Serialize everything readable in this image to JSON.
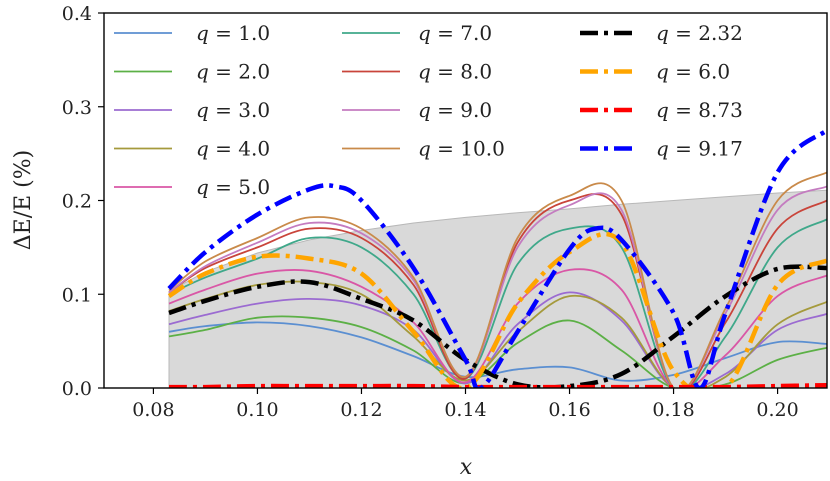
{
  "chart_data": {
    "type": "line",
    "xlabel": "x",
    "ylabel": "ΔE/E (%)",
    "xlim": [
      0.0705,
      0.2095
    ],
    "ylim": [
      0.0,
      0.4
    ],
    "xticks": [
      0.08,
      0.1,
      0.12,
      0.14,
      0.16,
      0.18,
      0.2
    ],
    "xtick_labels": [
      "0.08",
      "0.10",
      "0.12",
      "0.14",
      "0.16",
      "0.18",
      "0.20"
    ],
    "yticks": [
      0.0,
      0.1,
      0.2,
      0.3,
      0.4
    ],
    "ytick_labels": [
      "0.0",
      "0.1",
      "0.2",
      "0.3",
      "0.4"
    ],
    "grid": false,
    "legend_placement": "top",
    "legend_columns": 3,
    "shaded_region": {
      "color": "#d9d9d9",
      "x": [
        0.083,
        0.09,
        0.1,
        0.11,
        0.12,
        0.13,
        0.14,
        0.15,
        0.16,
        0.17,
        0.18,
        0.19,
        0.2,
        0.2095
      ],
      "y_upper": [
        0.103,
        0.124,
        0.144,
        0.158,
        0.168,
        0.176,
        0.182,
        0.187,
        0.191,
        0.196,
        0.2,
        0.204,
        0.208,
        0.211
      ],
      "y_lower": [
        0,
        0,
        0,
        0,
        0,
        0,
        0,
        0,
        0,
        0,
        0,
        0,
        0,
        0
      ]
    },
    "series": [
      {
        "name": "q = 1.0",
        "color": "#5b8fd1",
        "style": "solid",
        "width": 1.8,
        "x": [
          0.083,
          0.09,
          0.1,
          0.11,
          0.12,
          0.13,
          0.14,
          0.15,
          0.16,
          0.17,
          0.18,
          0.19,
          0.2,
          0.2095
        ],
        "y": [
          0.06,
          0.066,
          0.07,
          0.066,
          0.054,
          0.034,
          0.012,
          0.02,
          0.022,
          0.008,
          0.014,
          0.032,
          0.049,
          0.047
        ]
      },
      {
        "name": "q = 2.0",
        "color": "#5cb046",
        "style": "solid",
        "width": 1.8,
        "x": [
          0.083,
          0.09,
          0.1,
          0.11,
          0.12,
          0.13,
          0.14,
          0.15,
          0.16,
          0.17,
          0.18,
          0.19,
          0.2,
          0.2095
        ],
        "y": [
          0.055,
          0.062,
          0.075,
          0.075,
          0.065,
          0.04,
          0.005,
          0.048,
          0.072,
          0.04,
          0.0,
          0.004,
          0.03,
          0.043
        ]
      },
      {
        "name": "q = 3.0",
        "color": "#9b6bd1",
        "style": "solid",
        "width": 1.8,
        "x": [
          0.083,
          0.09,
          0.1,
          0.11,
          0.12,
          0.13,
          0.14,
          0.15,
          0.16,
          0.17,
          0.18,
          0.19,
          0.2,
          0.2095
        ],
        "y": [
          0.068,
          0.078,
          0.09,
          0.095,
          0.088,
          0.062,
          0.005,
          0.068,
          0.102,
          0.072,
          0.0,
          0.015,
          0.062,
          0.079
        ]
      },
      {
        "name": "q = 4.0",
        "color": "#a59a3c",
        "style": "solid",
        "width": 1.8,
        "x": [
          0.083,
          0.09,
          0.1,
          0.11,
          0.12,
          0.13,
          0.14,
          0.15,
          0.16,
          0.17,
          0.18,
          0.19,
          0.2,
          0.2095
        ],
        "y": [
          0.082,
          0.095,
          0.11,
          0.113,
          0.1,
          0.055,
          0.008,
          0.06,
          0.098,
          0.075,
          0.0,
          0.012,
          0.068,
          0.092
        ]
      },
      {
        "name": "q = 5.0",
        "color": "#d957a6",
        "style": "solid",
        "width": 1.8,
        "x": [
          0.083,
          0.09,
          0.1,
          0.11,
          0.12,
          0.13,
          0.14,
          0.15,
          0.16,
          0.17,
          0.18,
          0.19,
          0.2,
          0.2095
        ],
        "y": [
          0.09,
          0.105,
          0.122,
          0.125,
          0.108,
          0.07,
          0.006,
          0.09,
          0.126,
          0.105,
          0.0,
          0.035,
          0.098,
          0.12
        ]
      },
      {
        "name": "q = 7.0",
        "color": "#3fa88a",
        "style": "solid",
        "width": 1.8,
        "x": [
          0.083,
          0.09,
          0.1,
          0.11,
          0.12,
          0.13,
          0.14,
          0.15,
          0.16,
          0.17,
          0.18,
          0.19,
          0.2,
          0.2095
        ],
        "y": [
          0.1,
          0.118,
          0.138,
          0.16,
          0.15,
          0.1,
          0.01,
          0.132,
          0.17,
          0.15,
          0.0,
          0.055,
          0.15,
          0.18
        ]
      },
      {
        "name": "q = 8.0",
        "color": "#c9443a",
        "style": "solid",
        "width": 1.8,
        "x": [
          0.083,
          0.09,
          0.1,
          0.11,
          0.12,
          0.13,
          0.14,
          0.15,
          0.16,
          0.17,
          0.18,
          0.19,
          0.2,
          0.2095
        ],
        "y": [
          0.102,
          0.128,
          0.15,
          0.17,
          0.16,
          0.11,
          0.01,
          0.155,
          0.2,
          0.185,
          0.0,
          0.07,
          0.17,
          0.2
        ]
      },
      {
        "name": "q = 9.0",
        "color": "#c47cc0",
        "style": "solid",
        "width": 1.8,
        "x": [
          0.083,
          0.09,
          0.1,
          0.11,
          0.12,
          0.13,
          0.14,
          0.15,
          0.16,
          0.17,
          0.18,
          0.19,
          0.2,
          0.2095
        ],
        "y": [
          0.102,
          0.13,
          0.155,
          0.176,
          0.165,
          0.115,
          0.012,
          0.15,
          0.195,
          0.19,
          0.0,
          0.08,
          0.19,
          0.215
        ]
      },
      {
        "name": "q = 10.0",
        "color": "#c98a4a",
        "style": "solid",
        "width": 1.8,
        "x": [
          0.083,
          0.09,
          0.1,
          0.11,
          0.12,
          0.13,
          0.14,
          0.15,
          0.16,
          0.17,
          0.18,
          0.19,
          0.2,
          0.2095
        ],
        "y": [
          0.104,
          0.135,
          0.16,
          0.182,
          0.17,
          0.118,
          0.012,
          0.16,
          0.205,
          0.2,
          0.0,
          0.085,
          0.2,
          0.23
        ]
      },
      {
        "name": "q = 2.32",
        "color": "#000000",
        "style": "dashdot",
        "width": 4.5,
        "x": [
          0.083,
          0.09,
          0.1,
          0.11,
          0.12,
          0.13,
          0.14,
          0.15,
          0.16,
          0.17,
          0.18,
          0.19,
          0.2,
          0.2095
        ],
        "y": [
          0.08,
          0.093,
          0.108,
          0.113,
          0.095,
          0.072,
          0.03,
          0.004,
          0.002,
          0.015,
          0.055,
          0.098,
          0.127,
          0.128
        ]
      },
      {
        "name": "q = 6.0",
        "color": "#ffa500",
        "style": "dashdot",
        "width": 4.5,
        "x": [
          0.083,
          0.09,
          0.1,
          0.11,
          0.12,
          0.13,
          0.14,
          0.15,
          0.16,
          0.17,
          0.18,
          0.19,
          0.2,
          0.2095
        ],
        "y": [
          0.098,
          0.122,
          0.14,
          0.138,
          0.122,
          0.06,
          0.0,
          0.09,
          0.145,
          0.155,
          0.018,
          0.0,
          0.11,
          0.136
        ]
      },
      {
        "name": "q = 8.73",
        "color": "#ff0000",
        "style": "dashdot",
        "width": 4.5,
        "x": [
          0.083,
          0.09,
          0.1,
          0.11,
          0.12,
          0.13,
          0.14,
          0.15,
          0.16,
          0.17,
          0.18,
          0.19,
          0.2,
          0.2095
        ],
        "y": [
          0.001,
          0.001,
          0.002,
          0.002,
          0.002,
          0.002,
          0.001,
          0.001,
          0.001,
          0.001,
          0.001,
          0.001,
          0.002,
          0.003
        ]
      },
      {
        "name": "q = 9.17",
        "color": "#0000ff",
        "style": "dashdot",
        "width": 4.5,
        "x": [
          0.083,
          0.09,
          0.1,
          0.11,
          0.115,
          0.12,
          0.13,
          0.14,
          0.143,
          0.15,
          0.16,
          0.165,
          0.17,
          0.18,
          0.185,
          0.19,
          0.2,
          0.2095
        ],
        "y": [
          0.106,
          0.145,
          0.185,
          0.212,
          0.215,
          0.2,
          0.128,
          0.03,
          0.0,
          0.06,
          0.148,
          0.17,
          0.158,
          0.08,
          0.0,
          0.08,
          0.23,
          0.275
        ]
      }
    ]
  }
}
